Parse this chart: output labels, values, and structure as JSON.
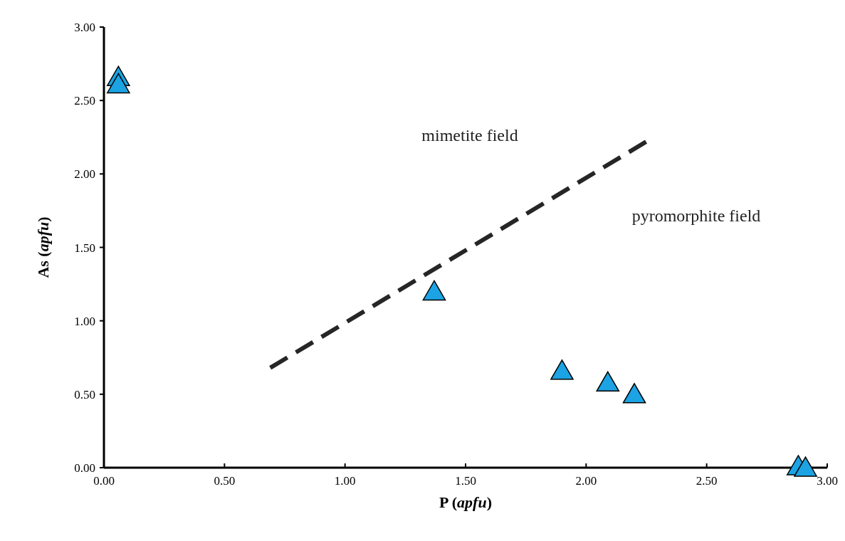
{
  "chart_data": {
    "type": "scatter",
    "xlabel": "P (apfu)",
    "ylabel": "As (apfu)",
    "xlim": [
      0,
      3
    ],
    "ylim": [
      0,
      3
    ],
    "xticks": [
      {
        "value": 0,
        "label": "0.00"
      },
      {
        "value": 0.5,
        "label": "0.50"
      },
      {
        "value": 1,
        "label": "1.00"
      },
      {
        "value": 1.5,
        "label": "1.50"
      },
      {
        "value": 2,
        "label": "2.00"
      },
      {
        "value": 2.5,
        "label": "2.50"
      },
      {
        "value": 3,
        "label": "3.00"
      }
    ],
    "yticks": [
      {
        "value": 0,
        "label": "0.00"
      },
      {
        "value": 0.5,
        "label": "0.50"
      },
      {
        "value": 1,
        "label": "1.00"
      },
      {
        "value": 1.5,
        "label": "1.50"
      },
      {
        "value": 2,
        "label": "2.00"
      },
      {
        "value": 2.5,
        "label": "2.50"
      },
      {
        "value": 3,
        "label": "3.00"
      }
    ],
    "grid": false,
    "series": [
      {
        "color": "#1ba3e3",
        "marker": "triangle",
        "x": [
          0.06,
          0.06,
          1.37,
          1.9,
          2.09,
          2.2,
          2.88,
          2.91
        ],
        "values": [
          2.66,
          2.61,
          1.2,
          0.66,
          0.58,
          0.5,
          0.01,
          0.0
        ]
      },
      {
        "type": "line",
        "color": "#262626",
        "line_style": "dashed",
        "marker": "none",
        "x": [
          0.69,
          2.26
        ],
        "values": [
          0.68,
          2.23
        ]
      }
    ],
    "annotations": [
      "mimetite field",
      "pyromorphite field"
    ]
  }
}
